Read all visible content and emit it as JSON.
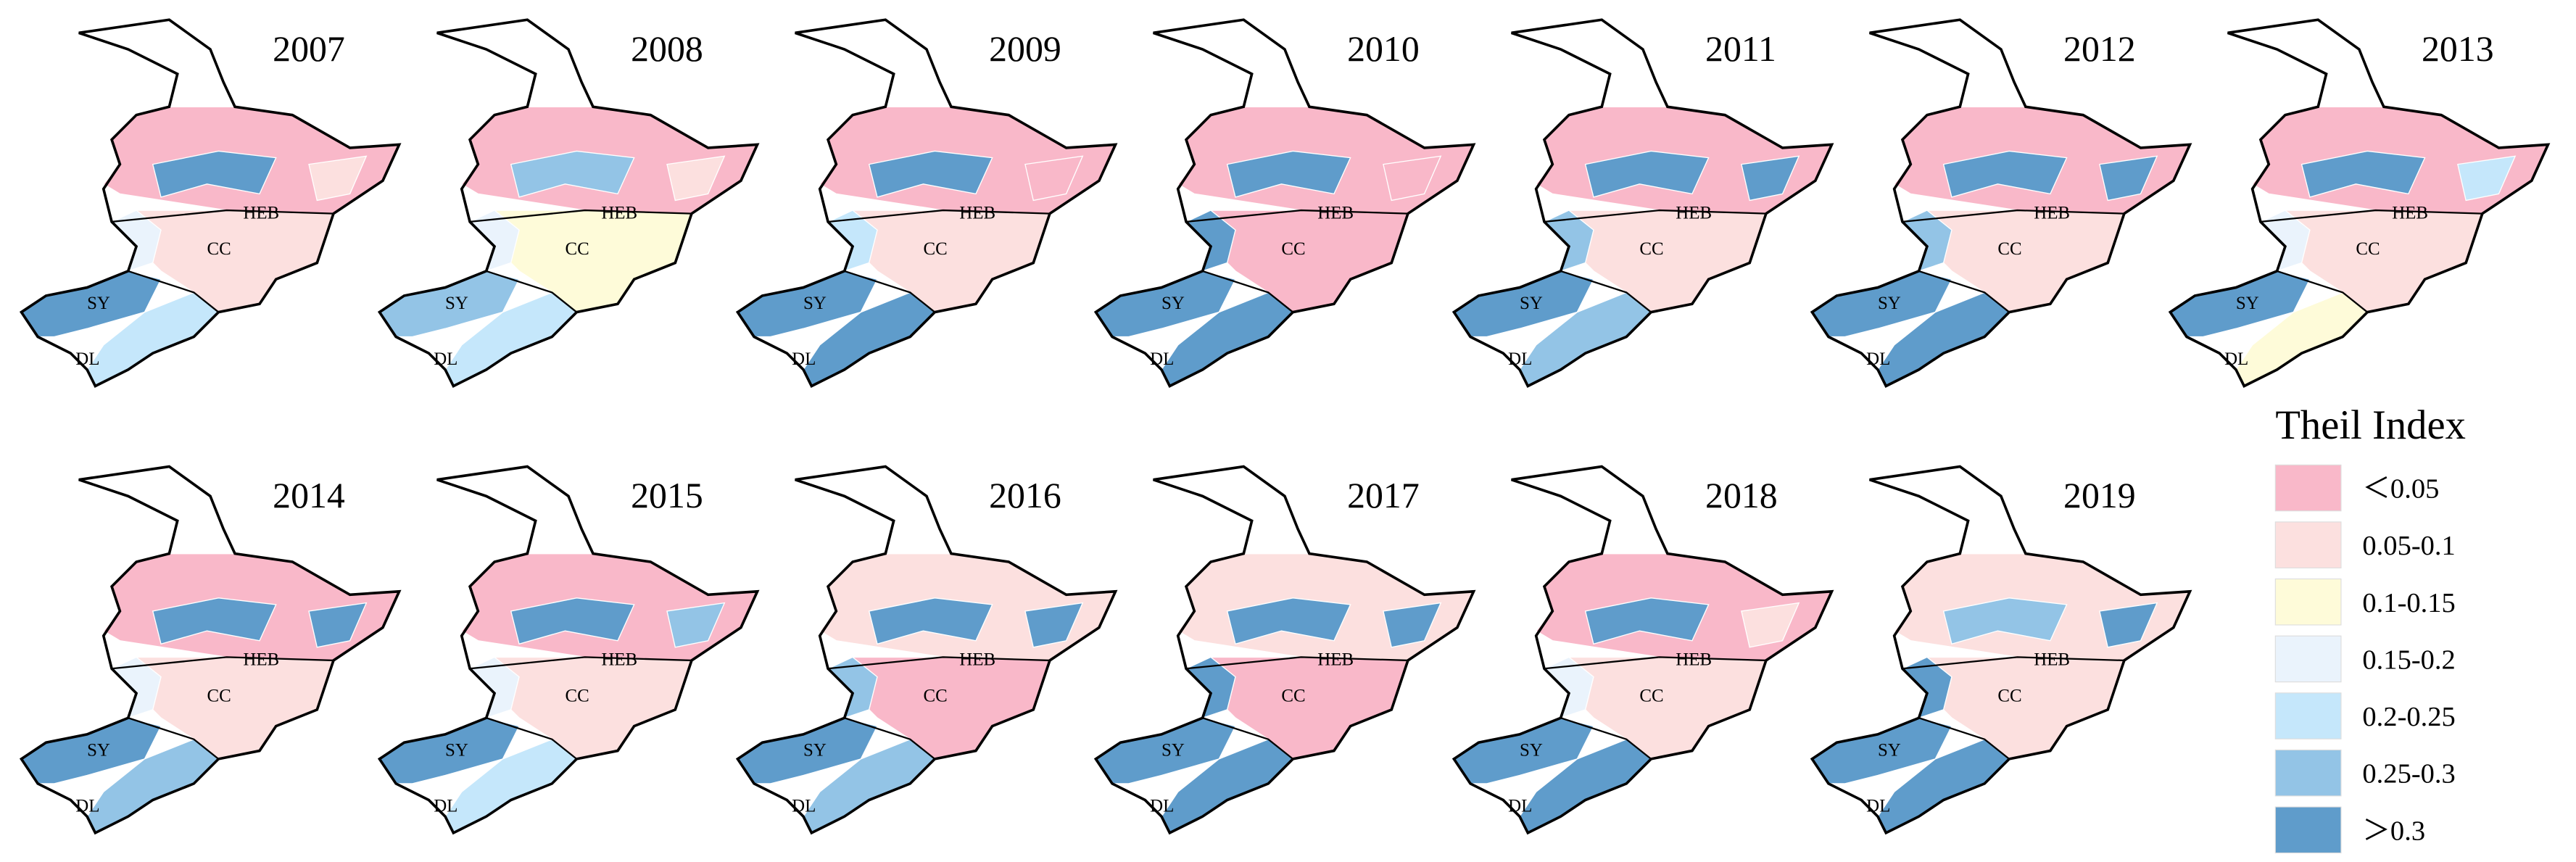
{
  "panels": [
    {
      "year": "2007",
      "classes": [
        0,
        6,
        1,
        1,
        3,
        6,
        4
      ]
    },
    {
      "year": "2008",
      "classes": [
        0,
        5,
        1,
        2,
        3,
        5,
        4
      ]
    },
    {
      "year": "2009",
      "classes": [
        0,
        6,
        0,
        1,
        4,
        6,
        6
      ]
    },
    {
      "year": "2010",
      "classes": [
        0,
        6,
        0,
        0,
        6,
        6,
        6
      ]
    },
    {
      "year": "2011",
      "classes": [
        0,
        6,
        6,
        1,
        5,
        6,
        5
      ]
    },
    {
      "year": "2012",
      "classes": [
        0,
        6,
        6,
        1,
        5,
        6,
        6
      ]
    },
    {
      "year": "2013",
      "classes": [
        0,
        6,
        4,
        1,
        3,
        6,
        2
      ]
    },
    {
      "year": "2014",
      "classes": [
        0,
        6,
        6,
        1,
        3,
        6,
        5
      ]
    },
    {
      "year": "2015",
      "classes": [
        0,
        6,
        5,
        1,
        3,
        6,
        4
      ]
    },
    {
      "year": "2016",
      "classes": [
        1,
        6,
        6,
        0,
        5,
        6,
        5
      ]
    },
    {
      "year": "2017",
      "classes": [
        1,
        6,
        6,
        0,
        6,
        6,
        6
      ]
    },
    {
      "year": "2018",
      "classes": [
        0,
        6,
        1,
        1,
        3,
        6,
        6
      ]
    },
    {
      "year": "2019",
      "classes": [
        1,
        5,
        6,
        1,
        6,
        6,
        6
      ]
    }
  ],
  "cities": [
    "HEB",
    "CC",
    "SY",
    "DL"
  ],
  "legend": {
    "title": "Theil Index",
    "items": [
      {
        "label": "＜0.05",
        "color": "#f9b8c9"
      },
      {
        "label": "0.05-0.1",
        "color": "#fce0df"
      },
      {
        "label": "0.1-0.15",
        "color": "#fefbd9"
      },
      {
        "label": "0.15-0.2",
        "color": "#eaf3fc"
      },
      {
        "label": "0.2-0.25",
        "color": "#c5e7fb"
      },
      {
        "label": "0.25-0.3",
        "color": "#93c4e6"
      },
      {
        "label": "＞0.3",
        "color": "#5f9ccb"
      }
    ]
  }
}
